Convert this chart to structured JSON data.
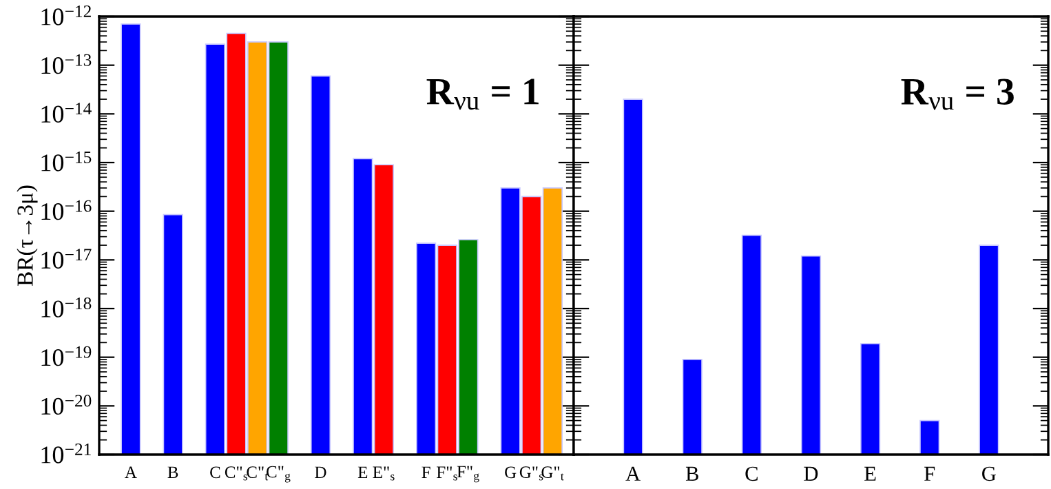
{
  "chart_data": [
    {
      "type": "bar",
      "ylabel": "BR(τ→3μ)",
      "annotations": [
        "R$_{νu}$ = 1"
      ],
      "categories": [
        "A",
        null,
        "B",
        null,
        "C",
        "C\"$_{s}$",
        "C\"$_{t}$",
        "C\"$_{g}$",
        null,
        "D",
        null,
        "E",
        "E\"$_{s}$",
        null,
        "F",
        "F\"$_{s}$",
        "F\"$_{g}$",
        null,
        "G",
        "G\"$_{s}$",
        "G\"$_{t}$"
      ],
      "values": [
        7e-13,
        null,
        8.5e-17,
        null,
        2.7e-13,
        4.5e-13,
        3e-13,
        3e-13,
        null,
        6e-14,
        null,
        1.2e-15,
        9e-16,
        null,
        2.2e-17,
        2e-17,
        2.6e-17,
        null,
        3e-16,
        2e-16,
        3e-16
      ],
      "colors": [
        "#0000ff",
        "#0000ff",
        "#0000ff",
        "#0000ff",
        "#0000ff",
        "#ff0000",
        "#ffa500",
        "#008000",
        "#0000ff",
        "#0000ff",
        "#0000ff",
        "#0000ff",
        "#ff0000",
        "#0000ff",
        "#0000ff",
        "#ff0000",
        "#008000",
        "#0000ff",
        "#0000ff",
        "#ff0000",
        "#ffa500"
      ],
      "log": true,
      "ylim": [
        1e-21,
        1e-12
      ],
      "yticks": [
        {
          "value": 1e-21,
          "label": "10$^{−21}$"
        },
        {
          "value": 1e-20,
          "label": "10$^{−20}$"
        },
        {
          "value": 1e-19,
          "label": "10$^{−19}$"
        },
        {
          "value": 1e-18,
          "label": "10$^{−18}$"
        },
        {
          "value": 1e-17,
          "label": "10$^{−17}$"
        },
        {
          "value": 1e-16,
          "label": "10$^{−16}$"
        },
        {
          "value": 1e-15,
          "label": "10$^{−15}$"
        },
        {
          "value": 1e-14,
          "label": "10$^{−14}$"
        },
        {
          "value": 1e-13,
          "label": "10$^{−13}$"
        },
        {
          "value": 1e-12,
          "label": "10$^{−12}$"
        }
      ]
    },
    {
      "type": "bar",
      "annotations": [
        "R$_{νu}$ = 3"
      ],
      "categories": [
        "A",
        "B",
        "C",
        "D",
        "E",
        "F",
        "G"
      ],
      "values": [
        2e-14,
        9e-20,
        3.2e-17,
        1.2e-17,
        1.9e-19,
        5e-21,
        2e-17
      ],
      "colors": [
        "#0000ff",
        "#0000ff",
        "#0000ff",
        "#0000ff",
        "#0000ff",
        "#0000ff",
        "#0000ff"
      ],
      "log": true,
      "ylim": [
        1e-21,
        1e-12
      ],
      "tick_labels": "x",
      "yticks": [
        {
          "value": 1e-21,
          "label": null
        },
        {
          "value": 1e-20,
          "label": null
        },
        {
          "value": 1e-19,
          "label": null
        },
        {
          "value": 1e-18,
          "label": null
        },
        {
          "value": 1e-17,
          "label": null
        },
        {
          "value": 1e-16,
          "label": null
        },
        {
          "value": 1e-15,
          "label": null
        },
        {
          "value": 1e-14,
          "label": null
        },
        {
          "value": 1e-13,
          "label": null
        },
        {
          "value": 1e-12,
          "label": null
        }
      ]
    }
  ]
}
